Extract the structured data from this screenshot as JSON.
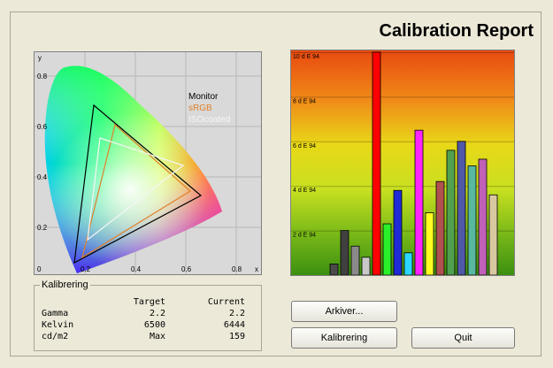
{
  "window": {
    "title": "Calibration Report"
  },
  "cie_diagram": {
    "axis_y_label": "y",
    "axis_x_label": "x",
    "y_ticks": [
      "0.8",
      "0.6",
      "0.4",
      "0.2"
    ],
    "x_ticks": [
      "0",
      "0.2",
      "0.4",
      "0.6",
      "0.8"
    ],
    "legend": [
      {
        "name": "Monitor",
        "color": "#000000"
      },
      {
        "name": "sRGB",
        "color": "#e0802a"
      },
      {
        "name": "ISOcoated",
        "color": "#f5f5f5"
      }
    ]
  },
  "chart_data": {
    "type": "bar",
    "ylabel": "",
    "y_ticks": [
      "10 d E 94",
      "8 d E 94",
      "6 d E 94",
      "4 d E 94",
      "2 d E 94"
    ],
    "ylim": [
      0,
      10
    ],
    "values": [
      0.5,
      2.0,
      1.3,
      0.8,
      10.0,
      2.3,
      3.8,
      1.0,
      6.5,
      2.8,
      4.2,
      5.6,
      6.0,
      4.9,
      5.2,
      3.6
    ],
    "colors": [
      "#4a4a4a",
      "#404040",
      "#8a8a8a",
      "#c8c8c8",
      "#ff0000",
      "#2af02a",
      "#1f2bd6",
      "#2ad8ff",
      "#ff24ff",
      "#ffff20",
      "#b05050",
      "#50a050",
      "#5058a8",
      "#58b8a0",
      "#c060b8",
      "#d8c8a0"
    ]
  },
  "kalibrering": {
    "title": "Kalibrering",
    "headers": [
      "",
      "Target",
      "Current"
    ],
    "rows": [
      [
        "Gamma",
        "2.2",
        "2.2"
      ],
      [
        "Kelvin",
        "6500",
        "6444"
      ],
      [
        "cd/m2",
        "Max",
        "159"
      ]
    ]
  },
  "buttons": {
    "arkiver": "Arkiver...",
    "kalibrering": "Kalibrering",
    "quit": "Quit"
  }
}
